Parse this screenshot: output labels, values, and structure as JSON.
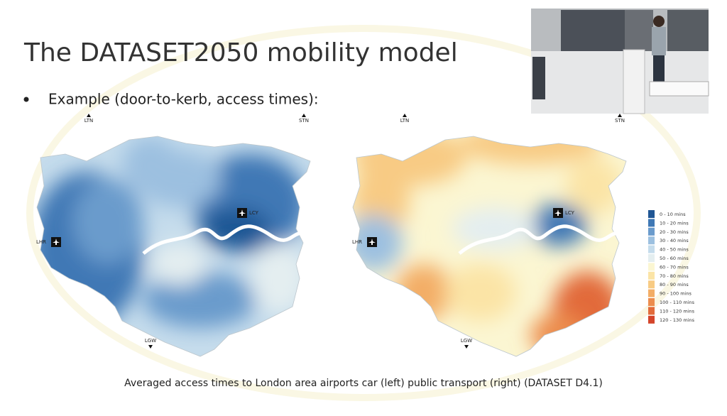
{
  "slide": {
    "title": "The DATASET2050 mobility model",
    "bullet": "Example (door-to-kerb, access times):",
    "caption": "Averaged access times to London area airports car (left) public transport (right) (DATASET D4.1)"
  },
  "maps": [
    {
      "labels": [
        "LTN",
        "STN",
        "LGW",
        "LHR",
        "LCY"
      ]
    },
    {
      "labels": [
        "LTN",
        "STN",
        "LGW",
        "LHR",
        "LCY"
      ]
    }
  ],
  "legend": {
    "entries": [
      {
        "label": "0 - 10 mins",
        "color": "#1f5694"
      },
      {
        "label": "10 - 20 mins",
        "color": "#3f78b5"
      },
      {
        "label": "20 - 30 mins",
        "color": "#6a9bcc"
      },
      {
        "label": "30 - 40 mins",
        "color": "#9cc0e0"
      },
      {
        "label": "40 - 50 mins",
        "color": "#c5dcec"
      },
      {
        "label": "50 - 60 mins",
        "color": "#e4eef0"
      },
      {
        "label": "60 - 70 mins",
        "color": "#fbf6d2"
      },
      {
        "label": "70 - 80 mins",
        "color": "#fbe4a6"
      },
      {
        "label": "80 - 90 mins",
        "color": "#f8cb84"
      },
      {
        "label": "90 - 100 mins",
        "color": "#f3ad66"
      },
      {
        "label": "100 - 110 mins",
        "color": "#ec8d4e"
      },
      {
        "label": "110 - 120 mins",
        "color": "#e26b3b"
      },
      {
        "label": "120 - 130 mins",
        "color": "#d4442a"
      }
    ]
  }
}
